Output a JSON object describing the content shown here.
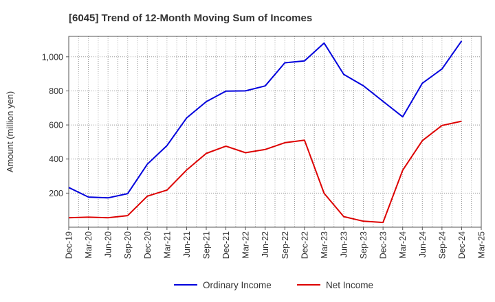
{
  "chart_data": {
    "type": "line",
    "title": "[6045]  Trend of 12-Month Moving Sum of Incomes",
    "xlabel": "",
    "ylabel": "Amount (million yen)",
    "ylim": [
      0,
      1120
    ],
    "yticks": [
      200,
      400,
      600,
      800,
      1000
    ],
    "ytick_labels": [
      "200",
      "400",
      "600",
      "800",
      "1,000"
    ],
    "categories": [
      "Dec-19",
      "Mar-20",
      "Jun-20",
      "Sep-20",
      "Dec-20",
      "Mar-21",
      "Jun-21",
      "Sep-21",
      "Dec-21",
      "Mar-22",
      "Jun-22",
      "Sep-22",
      "Dec-22",
      "Mar-23",
      "Jun-23",
      "Sep-23",
      "Dec-23",
      "Mar-24",
      "Jun-24",
      "Sep-24",
      "Dec-24",
      "Mar-25"
    ],
    "series": [
      {
        "name": "Ordinary Income",
        "color": "#0000dd",
        "values": [
          233,
          177,
          172,
          197,
          370,
          479,
          641,
          737,
          799,
          800,
          829,
          965,
          976,
          1081,
          897,
          830,
          739,
          648,
          845,
          929,
          1093,
          null
        ]
      },
      {
        "name": "Net Income",
        "color": "#dd0000",
        "values": [
          55,
          59,
          55,
          68,
          182,
          218,
          335,
          433,
          476,
          437,
          456,
          496,
          511,
          199,
          62,
          35,
          28,
          334,
          508,
          597,
          622,
          null
        ]
      }
    ],
    "grid": true,
    "legend_position": "bottom"
  }
}
